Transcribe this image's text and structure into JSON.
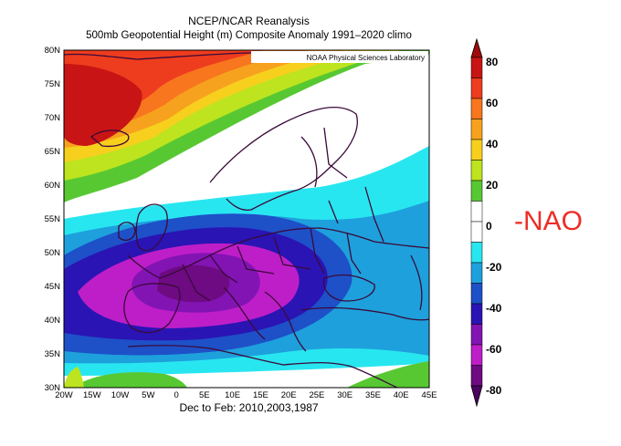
{
  "title_line1": "NCEP/NCAR Reanalysis",
  "title_line2": "500mb Geopotential Height (m) Composite Anomaly 1991–2020 climo",
  "credit": "NOAA Physical Sciences Laboratory",
  "footer": "Dec to Feb: 2010,2003,1987",
  "annotation": "-NAO",
  "lat_labels": [
    "80N",
    "75N",
    "70N",
    "65N",
    "60N",
    "55N",
    "50N",
    "45N",
    "40N",
    "35N",
    "30N"
  ],
  "lon_labels": [
    "20W",
    "15W",
    "10W",
    "5W",
    "0",
    "5E",
    "10E",
    "15E",
    "20E",
    "25E",
    "30E",
    "35E",
    "40E",
    "45E"
  ],
  "colorbar": {
    "labels": [
      "80",
      "60",
      "40",
      "20",
      "0",
      "-20",
      "-40",
      "-60",
      "-80"
    ],
    "colors": [
      "#c81414",
      "#ee3c1e",
      "#f7761e",
      "#f7a21e",
      "#f7d01e",
      "#bde41e",
      "#58c832",
      "#ffffff",
      "#ffffff",
      "#28e6f0",
      "#1ea0dc",
      "#1e50c8",
      "#2a14b4",
      "#8214b4",
      "#be1ec8",
      "#6e0a82"
    ]
  }
}
